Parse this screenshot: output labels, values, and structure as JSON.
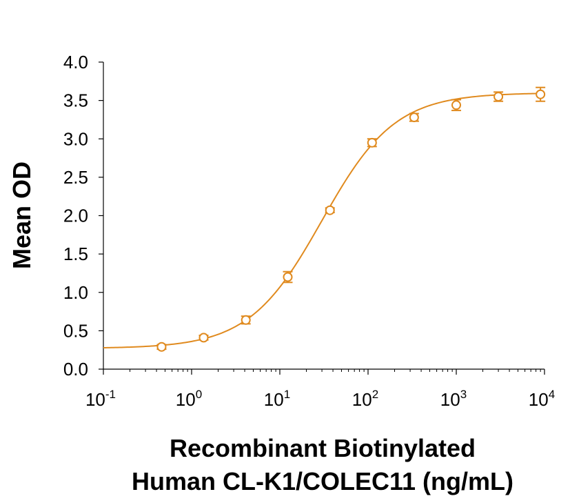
{
  "chart_data": {
    "type": "scatter",
    "title": "",
    "ylabel": "Mean OD",
    "xlabel_lines": [
      "Recombinant Biotinylated",
      "Human CL-K1/COLEC11 (ng/mL)"
    ],
    "x_scale": "log",
    "xlim": [
      0.1,
      10000
    ],
    "ylim": [
      0.0,
      4.0
    ],
    "y_ticks": [
      "0.0",
      "0.5",
      "1.0",
      "1.5",
      "2.0",
      "2.5",
      "3.0",
      "3.5",
      "4.0"
    ],
    "x_ticks": [
      {
        "base": "10",
        "exp": "-1"
      },
      {
        "base": "10",
        "exp": "0"
      },
      {
        "base": "10",
        "exp": "1"
      },
      {
        "base": "10",
        "exp": "2"
      },
      {
        "base": "10",
        "exp": "3"
      },
      {
        "base": "10",
        "exp": "4"
      }
    ],
    "color": "#E08A1E",
    "grid": false,
    "legend": "none",
    "series": [
      {
        "x": [
          0.457,
          1.37,
          4.12,
          12.3,
          37.0,
          111,
          333,
          1000,
          3000,
          9000
        ],
        "y": [
          0.29,
          0.41,
          0.64,
          1.2,
          2.07,
          2.95,
          3.28,
          3.44,
          3.55,
          3.58
        ],
        "err": [
          0.03,
          0.03,
          0.05,
          0.07,
          0.03,
          0.05,
          0.05,
          0.07,
          0.06,
          0.09
        ]
      }
    ],
    "fit_curve": {
      "type": "4PL",
      "bottom": 0.27,
      "top": 3.6,
      "ec50": 30,
      "hill": 1.05
    }
  }
}
